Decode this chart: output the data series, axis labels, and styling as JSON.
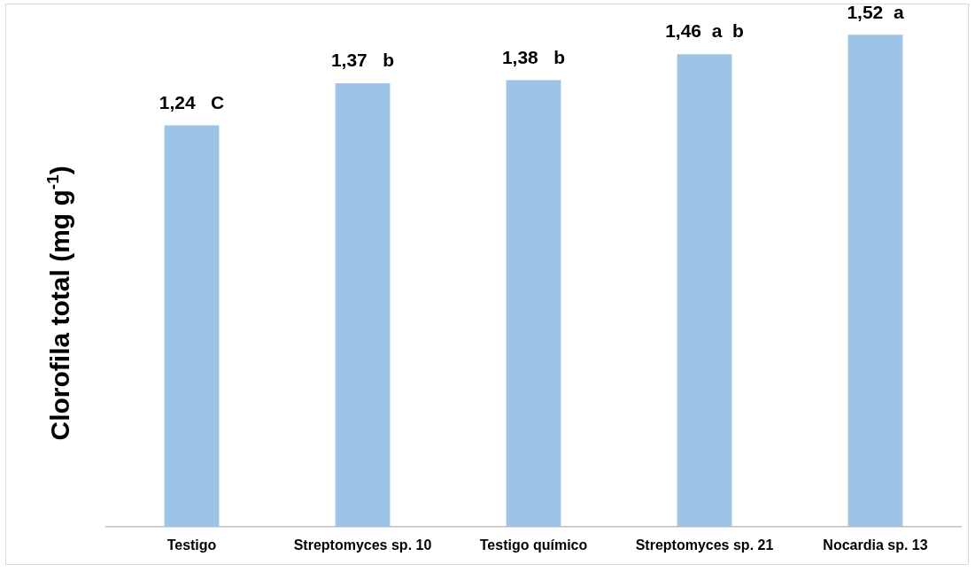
{
  "chart_data": {
    "type": "bar",
    "ylabel": "Clorofila total (mg g$^{-1}$)",
    "categories": [
      "Testigo",
      "Streptomyces sp. 10",
      "Testigo químico",
      "Streptomyces sp. 21",
      "Nocardia sp. 13"
    ],
    "values": [
      1.24,
      1.37,
      1.38,
      1.46,
      1.52
    ],
    "value_labels": [
      "1,24   C",
      "1,37   b",
      "1,38   b",
      "1,46  a  b",
      "1,52  a"
    ],
    "color": "#9dc3e6",
    "grid": false,
    "legend": false,
    "tick_labels": "x"
  }
}
